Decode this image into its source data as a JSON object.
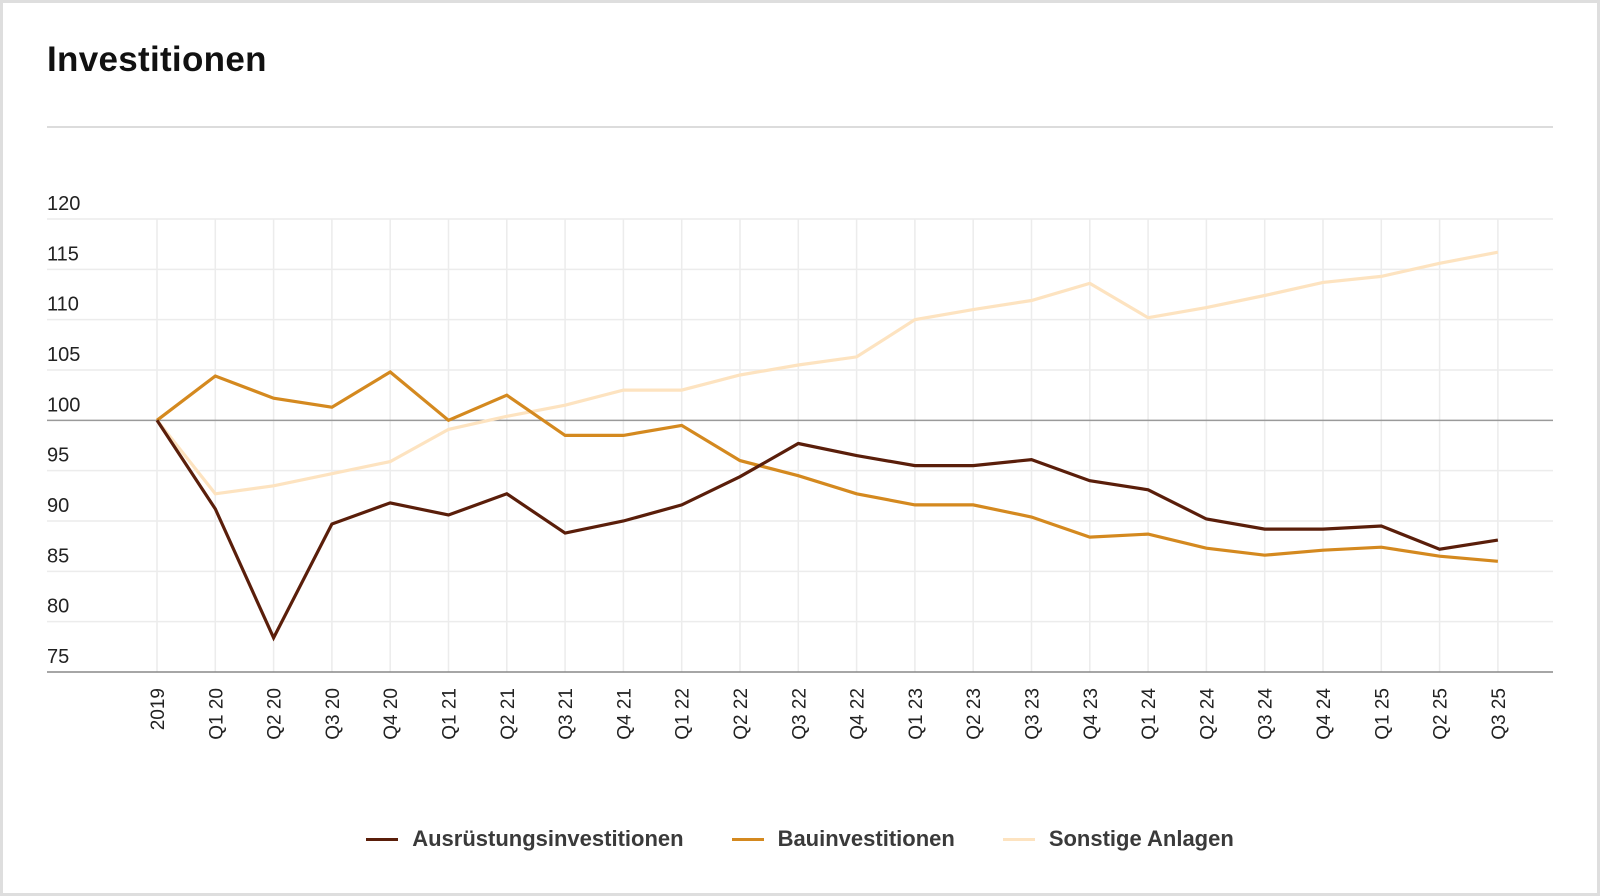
{
  "title": "Investitionen",
  "chart_data": {
    "type": "line",
    "title": "Investitionen",
    "xlabel": "",
    "ylabel": "",
    "ylim": [
      75,
      120
    ],
    "yticks": [
      75,
      80,
      85,
      90,
      95,
      100,
      105,
      110,
      115,
      120
    ],
    "ytick_labels": [
      "75",
      "80",
      "85",
      "90",
      "95",
      "100",
      "105",
      "110",
      "115",
      "120"
    ],
    "reference_line": 100,
    "grid": true,
    "legend_position": "bottom-center",
    "x": [
      "2019",
      "Q1 20",
      "Q2 20",
      "Q3 20",
      "Q4 20",
      "Q1 21",
      "Q2 21",
      "Q3 21",
      "Q4 21",
      "Q1 22",
      "Q2 22",
      "Q3 22",
      "Q4 22",
      "Q1 23",
      "Q2 23",
      "Q3 23",
      "Q4 23",
      "Q1 24",
      "Q2 24",
      "Q3 24",
      "Q4 24",
      "Q1 25",
      "Q2 25",
      "Q3 25"
    ],
    "series": [
      {
        "name": "Ausrüstungsinvestitionen",
        "color": "#5a1e0a",
        "values": [
          100,
          91.2,
          78.4,
          89.7,
          91.8,
          90.6,
          92.7,
          88.8,
          90.0,
          91.6,
          94.4,
          97.7,
          96.5,
          95.5,
          95.5,
          96.1,
          94.0,
          93.1,
          90.2,
          89.2,
          89.2,
          89.5,
          87.2,
          88.1
        ]
      },
      {
        "name": "Bauinvestitionen",
        "color": "#d4891f",
        "values": [
          100,
          104.4,
          102.2,
          101.3,
          104.8,
          100.0,
          102.5,
          98.5,
          98.5,
          99.5,
          96.0,
          94.5,
          92.7,
          91.6,
          91.6,
          90.4,
          88.4,
          88.7,
          87.3,
          86.6,
          87.1,
          87.4,
          86.5,
          86.0
        ]
      },
      {
        "name": "Sonstige Anlagen",
        "color": "#fde3c0",
        "values": [
          100,
          92.7,
          93.5,
          94.7,
          95.9,
          99.1,
          100.4,
          101.5,
          103.0,
          103.0,
          104.5,
          105.5,
          106.3,
          110.0,
          111.0,
          111.9,
          113.6,
          110.2,
          111.2,
          112.4,
          113.7,
          114.3,
          115.6,
          116.7
        ]
      }
    ]
  },
  "colors": {
    "grid": "#ececec",
    "axis": "#888888",
    "reference": "#9a9a9a",
    "frame_border": "#dedede"
  }
}
